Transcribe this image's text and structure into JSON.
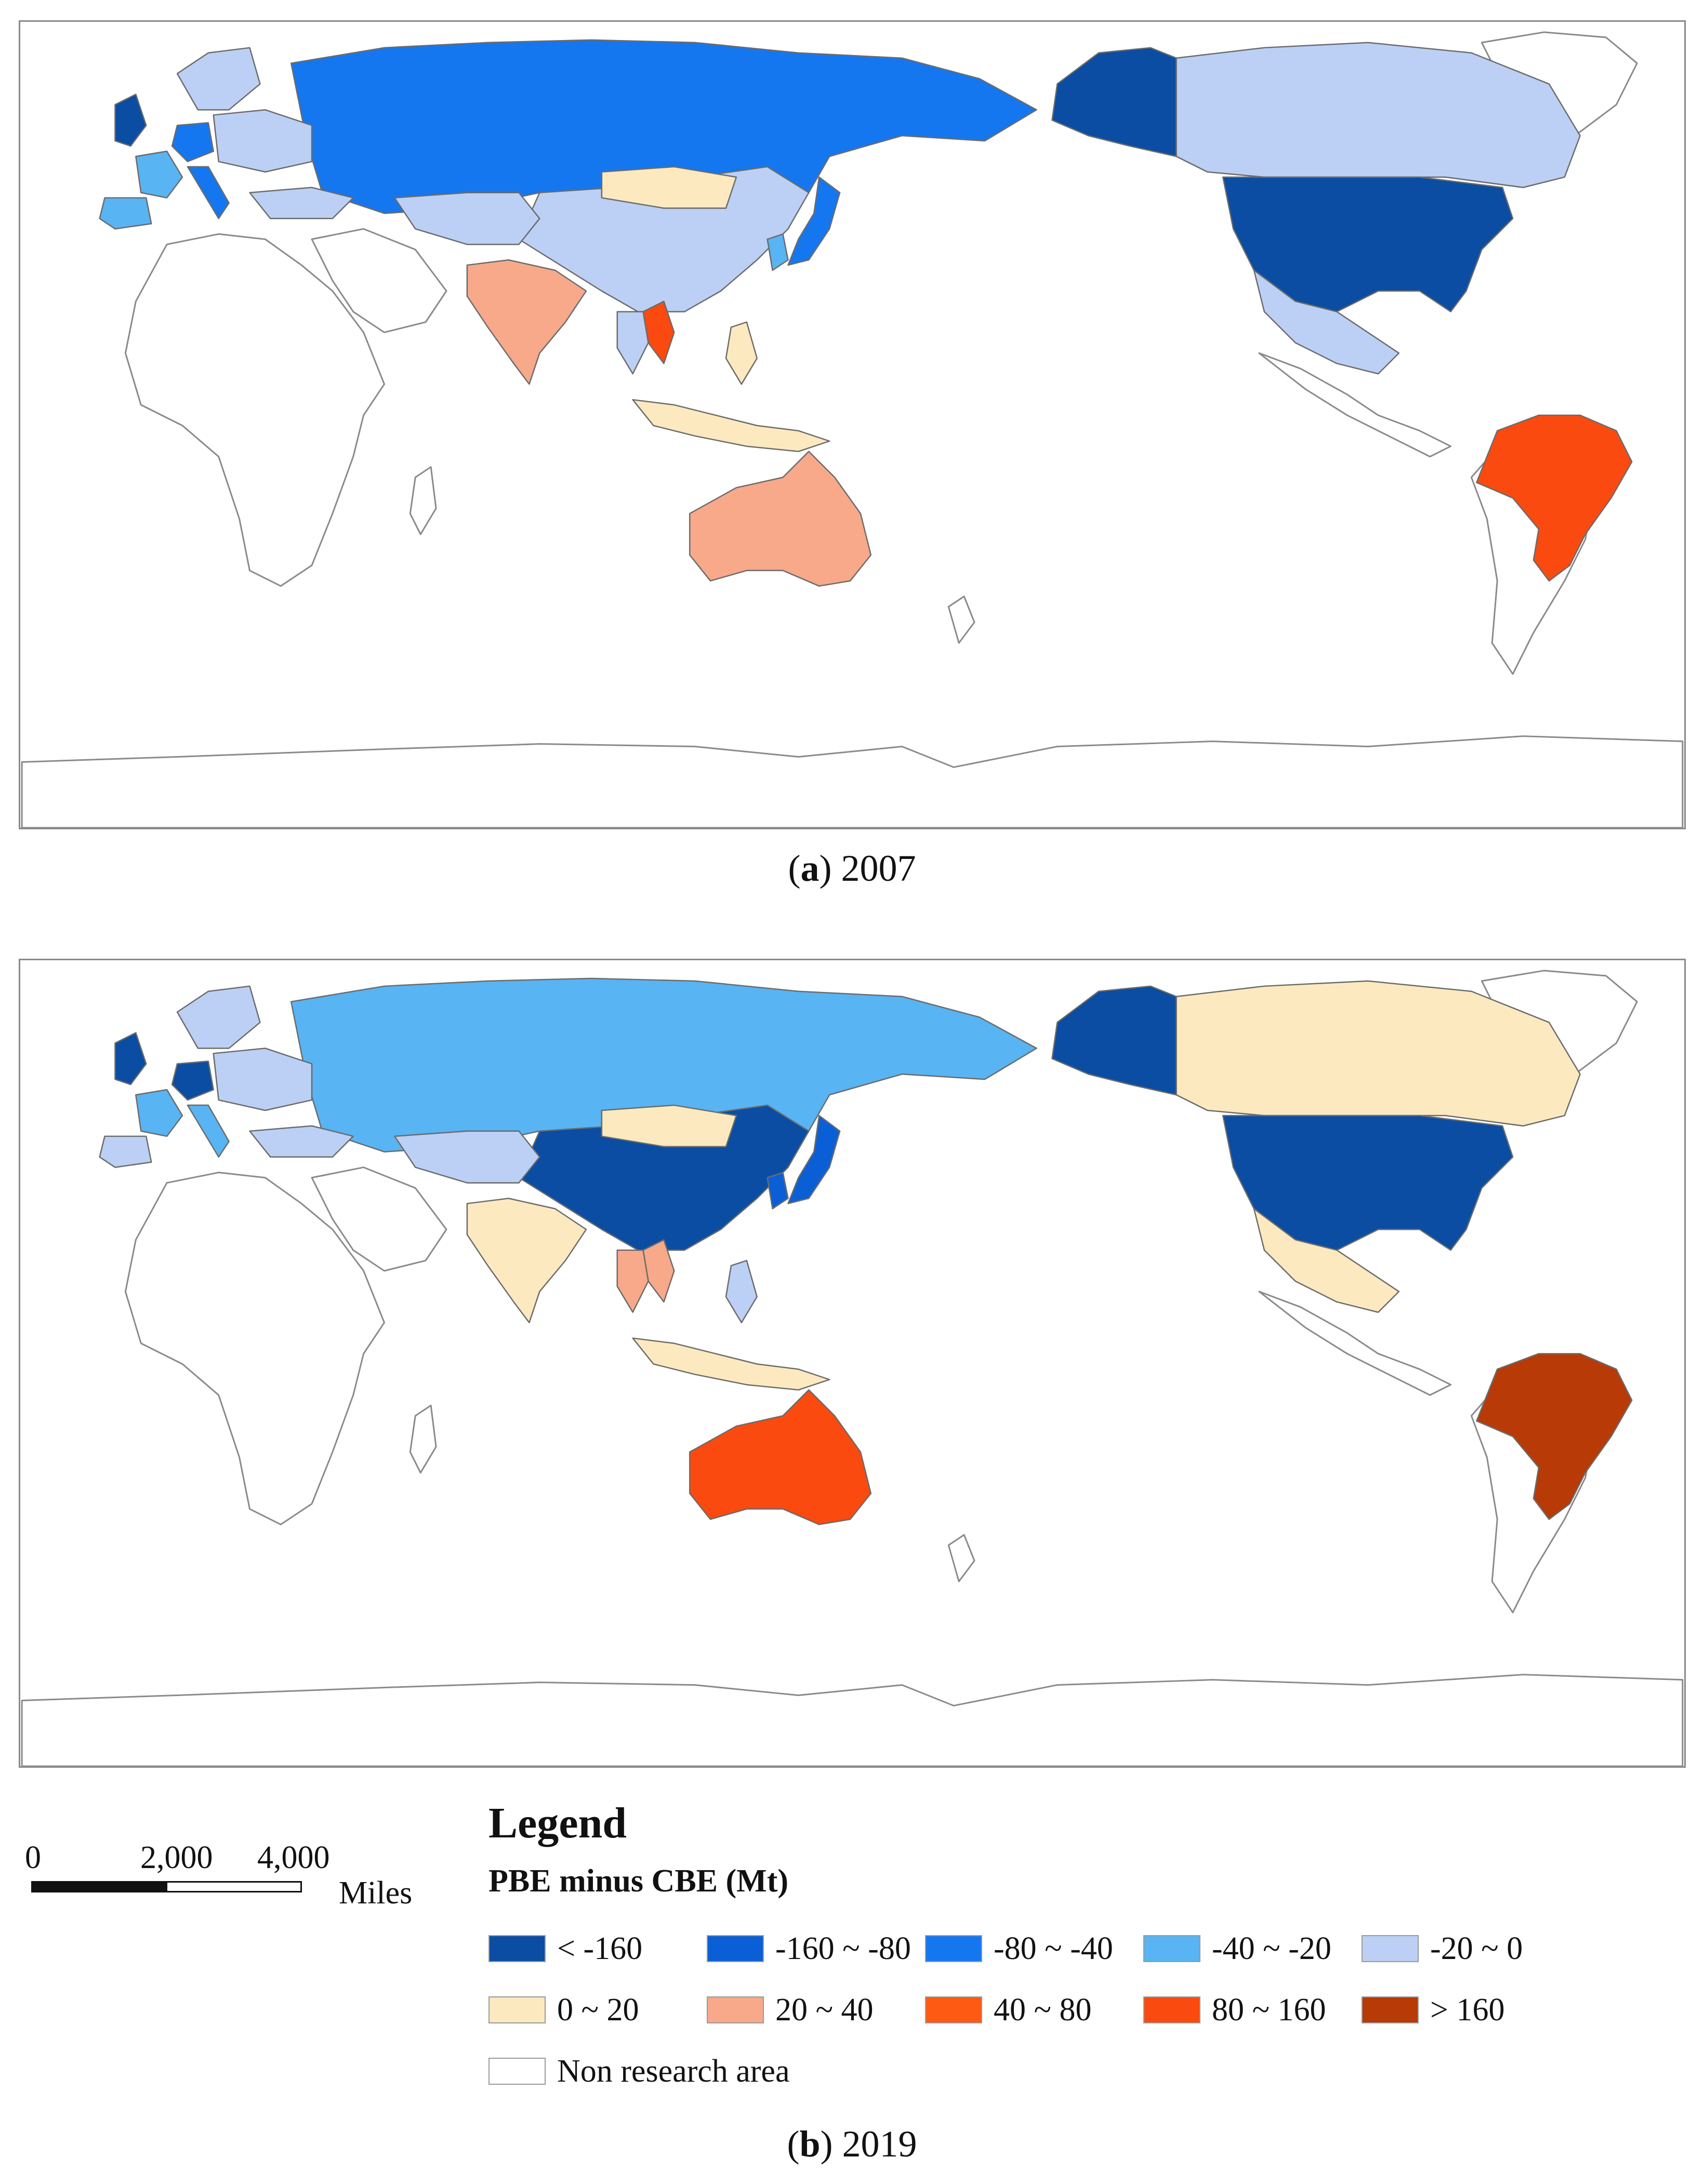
{
  "maps": [
    {
      "id": "a",
      "caption_letter": "a",
      "caption_year": "2007",
      "classes": {
        "russia": "-80 ~ -40",
        "usa": "< -160",
        "alaska": "< -160",
        "canada": "-20 ~ 0",
        "mexico": "-20 ~ 0",
        "brazil": "80 ~ 160",
        "australia": "20 ~ 40",
        "china": "-20 ~ 0",
        "mongolia": "0 ~ 20",
        "kazakhstan": "-20 ~ 0",
        "india": "20 ~ 40",
        "japan": "-80 ~ -40",
        "korea": "-40 ~ -20",
        "vietnam": "80 ~ 160",
        "thailand": "-20 ~ 0",
        "indonesia": "0 ~ 20",
        "philippines": "0 ~ 20",
        "uk": "< -160",
        "france": "-40 ~ -20",
        "spain": "-40 ~ -20",
        "germany": "-80 ~ -40",
        "italy": "-80 ~ -40",
        "scandinavia": "-20 ~ 0",
        "eastern_europe": "-20 ~ 0",
        "turkey": "-20 ~ 0"
      }
    },
    {
      "id": "b",
      "caption_letter": "b",
      "caption_year": "2019",
      "classes": {
        "russia": "-40 ~ -20",
        "usa": "< -160",
        "alaska": "< -160",
        "canada": "0 ~ 20",
        "mexico": "0 ~ 20",
        "brazil": "> 160",
        "australia": "80 ~ 160",
        "china": "< -160",
        "mongolia": "0 ~ 20",
        "kazakhstan": "-20 ~ 0",
        "india": "0 ~ 20",
        "japan": "-160 ~ -80",
        "korea": "-160 ~ -80",
        "vietnam": "20 ~ 40",
        "thailand": "20 ~ 40",
        "indonesia": "0 ~ 20",
        "philippines": "-20 ~ 0",
        "uk": "< -160",
        "france": "-40 ~ -20",
        "spain": "-20 ~ 0",
        "germany": "< -160",
        "italy": "-40 ~ -20",
        "scandinavia": "-20 ~ 0",
        "eastern_europe": "-20 ~ 0",
        "turkey": "-20 ~ 0"
      }
    }
  ],
  "scale_bar": {
    "ticks": [
      "0",
      "2,000",
      "4,000"
    ],
    "unit": "Miles"
  },
  "legend": {
    "title": "Legend",
    "subtitle": "PBE minus CBE (Mt)",
    "items": [
      {
        "label": "< -160",
        "color": "#0a4da3"
      },
      {
        "label": "-160 ~ -80",
        "color": "#0b5fd6"
      },
      {
        "label": "-80 ~ -40",
        "color": "#1577ef"
      },
      {
        "label": "-40 ~ -20",
        "color": "#58b4f2"
      },
      {
        "label": "-20 ~ 0",
        "color": "#bcd0f5"
      },
      {
        "label": "0 ~ 20",
        "color": "#fde9c0"
      },
      {
        "label": "20 ~ 40",
        "color": "#f7a98a"
      },
      {
        "label": "40 ~ 80",
        "color": "#ff5a14"
      },
      {
        "label": "80 ~ 160",
        "color": "#fa4a10"
      },
      {
        "label": "> 160",
        "color": "#b83a06"
      },
      {
        "label": "Non research area",
        "color": "#ffffff"
      }
    ]
  }
}
